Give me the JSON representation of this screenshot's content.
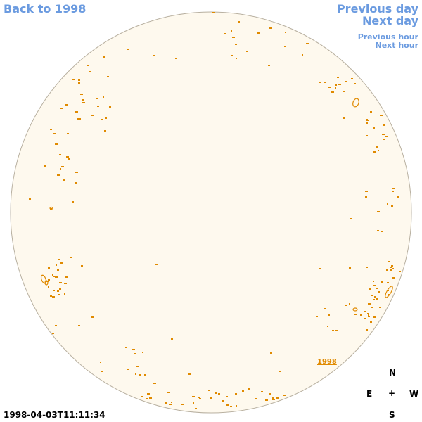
{
  "nav": {
    "back_label": "Back to 1998",
    "prev_day_label": "Previous day",
    "next_day_label": "Next day",
    "prev_hour_label": "Previous hour",
    "next_hour_label": "Next hour"
  },
  "timestamp": "1998-04-03T11:11:34",
  "year_label": "1998",
  "compass": {
    "n": "N",
    "e": "E",
    "center": "+",
    "w": "W",
    "s": "S"
  },
  "colors": {
    "disk_fill": "#fef9ee",
    "disk_border": "#b8b0a0",
    "contour": "#e08a00",
    "link": "#6b9be0"
  }
}
